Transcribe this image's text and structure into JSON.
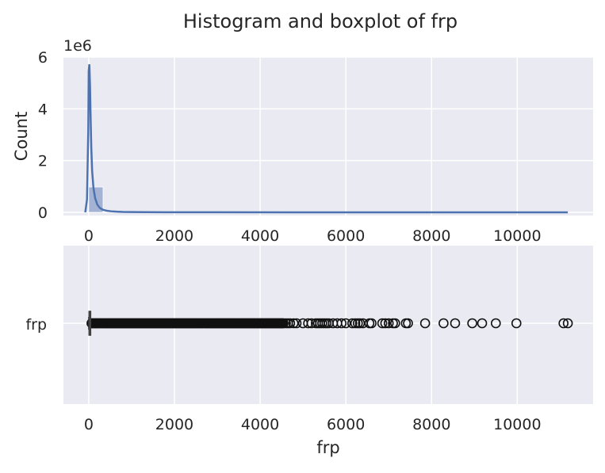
{
  "title": "Histogram and boxplot of frp",
  "colors": {
    "panel_bg": "#EAEAF2",
    "grid": "#FFFFFF",
    "bar_fill": "#A4B3D4",
    "kde_line": "#4C72B0",
    "box_line": "#3A3A3A",
    "text": "#262626"
  },
  "chart_data": [
    {
      "type": "bar",
      "subtype": "histogram_with_kde",
      "title": "",
      "xlabel": "",
      "ylabel": "Count",
      "y_offset_text": "1e6",
      "xlim": [
        -590,
        11770
      ],
      "ylim": [
        0,
        6.0
      ],
      "x_ticks": [
        0,
        2000,
        4000,
        6000,
        8000,
        10000
      ],
      "x_tick_labels": [
        "0",
        "2000",
        "4000",
        "6000",
        "8000",
        "10000"
      ],
      "y_ticks": [
        0,
        2,
        4,
        6
      ],
      "y_tick_labels": [
        "0",
        "2",
        "4",
        "6"
      ],
      "grid": true,
      "bins": {
        "edges": [
          0,
          335,
          670,
          1005,
          1340,
          1675,
          2010,
          2345,
          2680,
          3015,
          3350,
          3685,
          4020,
          4355,
          4690,
          5025,
          5360,
          5695,
          6030,
          6365,
          6700,
          7035,
          7370,
          7705,
          8040,
          8375,
          8710,
          9045,
          9380,
          9715,
          10050,
          10385,
          10720,
          11055,
          11180
        ],
        "values": [
          0.98,
          0.012,
          0.003,
          0.0012,
          0.0006,
          0.0004,
          0.0002,
          0.0001,
          0.0001,
          5e-05,
          4e-05,
          3e-05,
          2e-05,
          1e-05,
          1e-05,
          1e-05,
          1e-05,
          1e-05,
          1e-05,
          1e-05,
          1e-05,
          1e-05,
          1e-05,
          1e-05,
          1e-05,
          1e-05,
          1e-05,
          1e-05,
          1e-05,
          1e-05,
          1e-05,
          1e-05,
          1e-05,
          1e-05
        ]
      },
      "kde": {
        "x": [
          -80,
          -40,
          -10,
          0,
          15,
          30,
          45,
          60,
          80,
          110,
          150,
          200,
          260,
          330,
          420,
          520,
          650,
          800,
          1000,
          1300,
          1800,
          3000,
          5000,
          8000,
          11180
        ],
        "y": [
          0.0,
          0.5,
          3.2,
          5.45,
          5.72,
          4.9,
          3.6,
          2.5,
          1.6,
          0.95,
          0.55,
          0.3,
          0.17,
          0.1,
          0.06,
          0.04,
          0.025,
          0.015,
          0.01,
          0.006,
          0.004,
          0.002,
          0.001,
          0.0005,
          0.0002
        ]
      }
    },
    {
      "type": "boxplot",
      "title": "",
      "xlabel": "frp",
      "ylabel": "",
      "category": "frp",
      "xlim": [
        -590,
        11770
      ],
      "x_ticks": [
        0,
        2000,
        4000,
        6000,
        8000,
        10000
      ],
      "x_tick_labels": [
        "0",
        "2000",
        "4000",
        "6000",
        "8000",
        "10000"
      ],
      "grid": true,
      "box": {
        "whisker_low": 0,
        "q1": 8,
        "median": 14,
        "q3": 28,
        "whisker_high": 60
      },
      "outliers_dense_range": [
        65,
        4550
      ],
      "outliers": [
        4600,
        4650,
        4700,
        4780,
        4850,
        5000,
        5120,
        5200,
        5300,
        5350,
        5400,
        5450,
        5500,
        5550,
        5600,
        5700,
        5800,
        5900,
        6000,
        6150,
        6220,
        6280,
        6330,
        6400,
        6550,
        6600,
        6850,
        6920,
        7000,
        7100,
        7150,
        7400,
        7450,
        7850,
        8280,
        8550,
        8950,
        9180,
        9500,
        9980,
        11080,
        11180
      ]
    }
  ]
}
